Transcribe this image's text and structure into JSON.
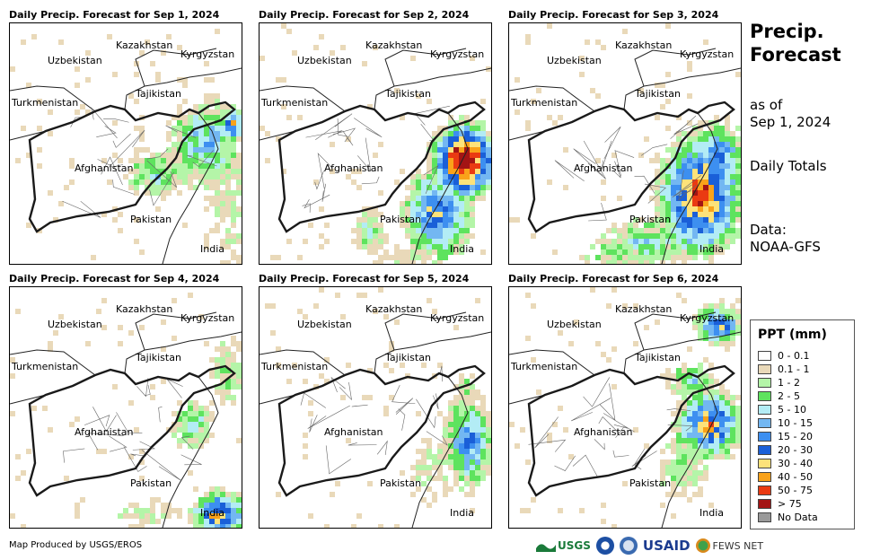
{
  "panels": [
    {
      "title": "Daily Precip. Forecast for Sep 1, 2024",
      "pattern": "east-light"
    },
    {
      "title": "Daily Precip. Forecast for Sep 2, 2024",
      "pattern": "east-heavy"
    },
    {
      "title": "Daily Precip. Forecast for Sep 3, 2024",
      "pattern": "east-wide"
    },
    {
      "title": "Daily Precip. Forecast for Sep 4, 2024",
      "pattern": "southeast"
    },
    {
      "title": "Daily Precip. Forecast for Sep 5, 2024",
      "pattern": "east-narrow"
    },
    {
      "title": "Daily Precip. Forecast for Sep 6, 2024",
      "pattern": "northeast"
    }
  ],
  "country_labels": {
    "kazakhstan": "Kazakhstan",
    "uzbekistan": "Uzbekistan",
    "kyrgyzstan": "Kyrgyzstan",
    "tajikistan": "Tajikistan",
    "turkmenistan": "Turkmenistan",
    "afghanistan": "Afghanistan",
    "pakistan": "Pakistan",
    "india": "India"
  },
  "side": {
    "title_line1": "Precip.",
    "title_line2": "Forecast",
    "asof_line1": "as of",
    "asof_line2": "Sep 1, 2024",
    "totals": "Daily Totals",
    "data_line1": "Data:",
    "data_line2": "NOAA-GFS"
  },
  "legend": {
    "title": "PPT (mm)",
    "items": [
      {
        "label": "0 - 0.1",
        "color": "#ffffff"
      },
      {
        "label": "0.1 - 1",
        "color": "#e9d9b9"
      },
      {
        "label": "1 - 2",
        "color": "#b4f5a8"
      },
      {
        "label": "2 - 5",
        "color": "#5ee35e"
      },
      {
        "label": "5 - 10",
        "color": "#b3ecf5"
      },
      {
        "label": "10 - 15",
        "color": "#73b7f2"
      },
      {
        "label": "15 - 20",
        "color": "#3d8ff0"
      },
      {
        "label": "20 - 30",
        "color": "#1a5fd8"
      },
      {
        "label": "30 - 40",
        "color": "#fde27a"
      },
      {
        "label": "40 - 50",
        "color": "#f9a21a"
      },
      {
        "label": "50 - 75",
        "color": "#ea3a12"
      },
      {
        "label": "> 75",
        "color": "#a31414"
      },
      {
        "label": "No Data",
        "color": "#999999"
      }
    ]
  },
  "footer": "Map Produced by USGS/EROS",
  "logos": {
    "usgs": "USGS",
    "usaid": "USAID",
    "fewsnet": "FEWS NET"
  }
}
